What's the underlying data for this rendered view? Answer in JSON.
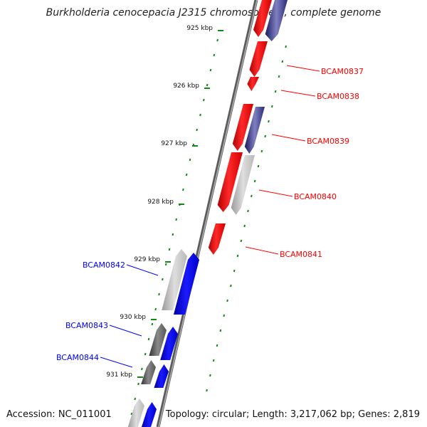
{
  "title": "Burkholderia cenocepacia J2315 chromosome 2, complete genome",
  "accession": "Accession: NC_011001",
  "summary": "Topology: circular; Length: 3,217,062 bp; Genes: 2,819",
  "colors": {
    "forward_gene": "#ff0000",
    "reverse_gene": "#0000ff",
    "other_gene": "#2a2a7a",
    "tick": "#138a13",
    "backbone": "#777777"
  },
  "ticks": [
    {
      "label": "925 kbp"
    },
    {
      "label": "926 kbp"
    },
    {
      "label": "927 kbp"
    },
    {
      "label": "928 kbp"
    },
    {
      "label": "929 kbp"
    },
    {
      "label": "930 kbp"
    },
    {
      "label": "931 kbp"
    }
  ],
  "genes_labeled": [
    {
      "label": "BCAM0837",
      "strand": "forward"
    },
    {
      "label": "BCAM0838",
      "strand": "forward"
    },
    {
      "label": "BCAM0839",
      "strand": "forward"
    },
    {
      "label": "BCAM0840",
      "strand": "forward"
    },
    {
      "label": "BCAM0841",
      "strand": "forward"
    },
    {
      "label": "BCAM0842",
      "strand": "reverse"
    },
    {
      "label": "BCAM0843",
      "strand": "reverse"
    },
    {
      "label": "BCAM0844",
      "strand": "reverse"
    }
  ]
}
